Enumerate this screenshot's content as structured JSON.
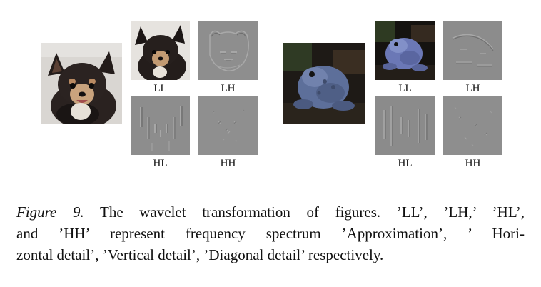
{
  "left_example": {
    "original_alt": "dog",
    "ll_label": "LL",
    "lh_label": "LH",
    "hl_label": "HL",
    "hh_label": "HH"
  },
  "right_example": {
    "original_alt": "frog",
    "ll_label": "LL",
    "lh_label": "LH",
    "hl_label": "HL",
    "hh_label": "HH"
  },
  "caption": {
    "figure_number": "Figure 9.",
    "line1_rest": "The wavelet transformation of figures. ’LL’, ’LH,’ ’HL’,",
    "line2": "and ’HH’ represent frequency spectrum ’Approximation’, ’ Hori-",
    "line3": "zontal detail’, ’Vertical detail’, ’Diagonal detail’ respectively."
  },
  "colors": {
    "detail_gray": "#8c8c8c",
    "text": "#111111"
  }
}
